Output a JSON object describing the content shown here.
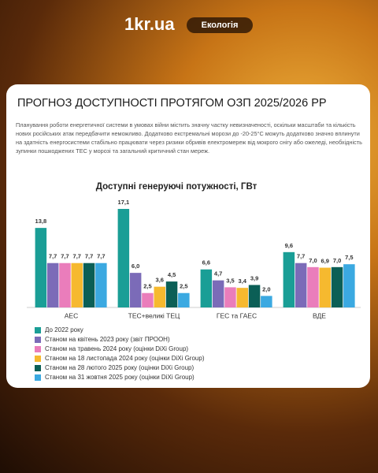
{
  "header": {
    "brand": "1kr.ua",
    "tag": "Екологія"
  },
  "card": {
    "title": "ПРОГНОЗ ДОСТУПНОСТІ ПРОТЯГОМ ОЗП 2025/2026 РР",
    "text": "Планування роботи енергетичної системи в умовах війни містить значну частку невизначеності, оскільки масштаби та кількість нових російських атак передбачити неможливо. Додатково екстремальні морози до -20-25°С можуть додатково значно вплинути на здатність енергосистеми стабільно працювати через ризики обривів електромереж від мокрого снігу або ожеледі, необхідність зупинки пошкоджених ТЕС у морозі та загальний критичний стан мереж."
  },
  "chart_data": {
    "type": "bar",
    "title": "Доступні генеруючі потужності, ГВт",
    "categories": [
      "АЕС",
      "ТЕС+великі ТЕЦ",
      "ГЕС та ГАЕС",
      "ВДЕ"
    ],
    "series": [
      {
        "name": "До 2022 року",
        "color": "#1a9e96",
        "values": [
          13.8,
          17.1,
          6.6,
          9.6
        ],
        "value_labels": [
          "13,8",
          "17,1",
          "6,6",
          "9,6"
        ]
      },
      {
        "name": "Станом на квітень 2023 року (звіт ПРООН)",
        "color": "#7b6bb8",
        "values": [
          7.7,
          6.0,
          4.7,
          7.7
        ],
        "value_labels": [
          "7,7",
          "6,0",
          "4,7",
          "7,7"
        ]
      },
      {
        "name": "Станом на травень 2024 року (оцінки DiXi Group)",
        "color": "#ea7dbb",
        "values": [
          7.7,
          2.5,
          3.5,
          7.0
        ],
        "value_labels": [
          "7,7",
          "2,5",
          "3,5",
          "7,0"
        ]
      },
      {
        "name": "Станом на 18 листопада 2024 року (оцінки DiXi Group)",
        "color": "#f6b92f",
        "values": [
          7.7,
          3.6,
          3.4,
          6.9
        ],
        "value_labels": [
          "7,7",
          "3,6",
          "3,4",
          "6,9"
        ]
      },
      {
        "name": "Станом на 28 лютого 2025 року (оцінки DiXi Group)",
        "color": "#0b5f56",
        "values": [
          7.7,
          4.5,
          3.9,
          7.0
        ],
        "value_labels": [
          "7,7",
          "4,5",
          "3,9",
          "7,0"
        ]
      },
      {
        "name": "Станом на 31 жовтня 2025 року (оцінки DiXi Group)",
        "color": "#3ba9e1",
        "values": [
          7.7,
          2.5,
          2.0,
          7.5
        ],
        "value_labels": [
          "7,7",
          "2,5",
          "2,0",
          "7,5"
        ]
      }
    ]
  }
}
